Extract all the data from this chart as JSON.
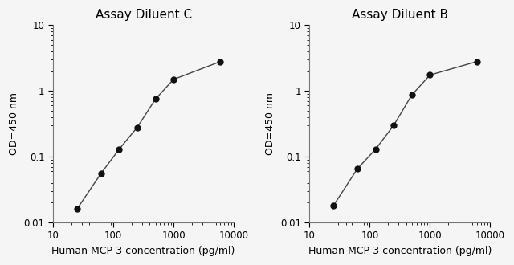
{
  "panel_C": {
    "title": "Assay Diluent C",
    "x": [
      25,
      62,
      125,
      250,
      500,
      1000,
      6000
    ],
    "y": [
      0.016,
      0.055,
      0.13,
      0.28,
      0.75,
      1.5,
      2.8
    ],
    "xlabel": "Human MCP-3 concentration (pg/ml)",
    "ylabel": "OD=450 nm"
  },
  "panel_B": {
    "title": "Assay Diluent B",
    "x": [
      25,
      62,
      125,
      250,
      500,
      1000,
      6000
    ],
    "y": [
      0.018,
      0.065,
      0.13,
      0.3,
      0.87,
      1.75,
      2.8
    ],
    "xlabel": "Human MCP-3 concentration (pg/ml)",
    "ylabel": "OD=450 nm"
  },
  "xlim": [
    15,
    10000
  ],
  "ylim": [
    0.01,
    10
  ],
  "line_color": "#444444",
  "marker_color": "#111111",
  "marker_size": 5,
  "line_width": 1.0,
  "background_color": "#f5f5f5",
  "title_fontsize": 11,
  "label_fontsize": 9,
  "tick_fontsize": 8.5
}
